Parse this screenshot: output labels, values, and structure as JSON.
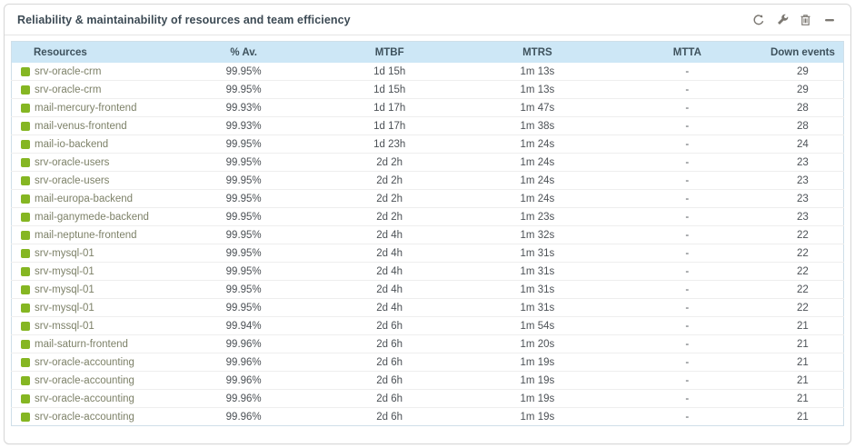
{
  "panel": {
    "title": "Reliability & maintainability of resources and team efficiency",
    "toolbar": {
      "icons": [
        "refresh-icon",
        "wrench-icon",
        "trash-icon",
        "minimize-icon"
      ]
    }
  },
  "colors": {
    "header_bg": "#cde7f6",
    "header_text": "#3e525d",
    "status_ok": "#85b622",
    "resource_text": "#7d8168",
    "cell_text": "#4c5156",
    "icon_gray": "#7c7872"
  },
  "table": {
    "columns": [
      {
        "key": "resource",
        "label": "Resources"
      },
      {
        "key": "availability",
        "label": "% Av."
      },
      {
        "key": "mtbf",
        "label": "MTBF"
      },
      {
        "key": "mtrs",
        "label": "MTRS"
      },
      {
        "key": "mtta",
        "label": "MTTA"
      },
      {
        "key": "down_events",
        "label": "Down events"
      }
    ],
    "rows": [
      {
        "status": "ok",
        "resource": "srv-oracle-crm",
        "availability": "99.95%",
        "mtbf": "1d 15h",
        "mtrs": "1m 13s",
        "mtta": "-",
        "down_events": 29
      },
      {
        "status": "ok",
        "resource": "srv-oracle-crm",
        "availability": "99.95%",
        "mtbf": "1d 15h",
        "mtrs": "1m 13s",
        "mtta": "-",
        "down_events": 29
      },
      {
        "status": "ok",
        "resource": "mail-mercury-frontend",
        "availability": "99.93%",
        "mtbf": "1d 17h",
        "mtrs": "1m 47s",
        "mtta": "-",
        "down_events": 28
      },
      {
        "status": "ok",
        "resource": "mail-venus-frontend",
        "availability": "99.93%",
        "mtbf": "1d 17h",
        "mtrs": "1m 38s",
        "mtta": "-",
        "down_events": 28
      },
      {
        "status": "ok",
        "resource": "mail-io-backend",
        "availability": "99.95%",
        "mtbf": "1d 23h",
        "mtrs": "1m 24s",
        "mtta": "-",
        "down_events": 24
      },
      {
        "status": "ok",
        "resource": "srv-oracle-users",
        "availability": "99.95%",
        "mtbf": "2d 2h",
        "mtrs": "1m 24s",
        "mtta": "-",
        "down_events": 23
      },
      {
        "status": "ok",
        "resource": "srv-oracle-users",
        "availability": "99.95%",
        "mtbf": "2d 2h",
        "mtrs": "1m 24s",
        "mtta": "-",
        "down_events": 23
      },
      {
        "status": "ok",
        "resource": "mail-europa-backend",
        "availability": "99.95%",
        "mtbf": "2d 2h",
        "mtrs": "1m 24s",
        "mtta": "-",
        "down_events": 23
      },
      {
        "status": "ok",
        "resource": "mail-ganymede-backend",
        "availability": "99.95%",
        "mtbf": "2d 2h",
        "mtrs": "1m 23s",
        "mtta": "-",
        "down_events": 23
      },
      {
        "status": "ok",
        "resource": "mail-neptune-frontend",
        "availability": "99.95%",
        "mtbf": "2d 4h",
        "mtrs": "1m 32s",
        "mtta": "-",
        "down_events": 22
      },
      {
        "status": "ok",
        "resource": "srv-mysql-01",
        "availability": "99.95%",
        "mtbf": "2d 4h",
        "mtrs": "1m 31s",
        "mtta": "-",
        "down_events": 22
      },
      {
        "status": "ok",
        "resource": "srv-mysql-01",
        "availability": "99.95%",
        "mtbf": "2d 4h",
        "mtrs": "1m 31s",
        "mtta": "-",
        "down_events": 22
      },
      {
        "status": "ok",
        "resource": "srv-mysql-01",
        "availability": "99.95%",
        "mtbf": "2d 4h",
        "mtrs": "1m 31s",
        "mtta": "-",
        "down_events": 22
      },
      {
        "status": "ok",
        "resource": "srv-mysql-01",
        "availability": "99.95%",
        "mtbf": "2d 4h",
        "mtrs": "1m 31s",
        "mtta": "-",
        "down_events": 22
      },
      {
        "status": "ok",
        "resource": "srv-mssql-01",
        "availability": "99.94%",
        "mtbf": "2d 6h",
        "mtrs": "1m 54s",
        "mtta": "-",
        "down_events": 21
      },
      {
        "status": "ok",
        "resource": "mail-saturn-frontend",
        "availability": "99.96%",
        "mtbf": "2d 6h",
        "mtrs": "1m 20s",
        "mtta": "-",
        "down_events": 21
      },
      {
        "status": "ok",
        "resource": "srv-oracle-accounting",
        "availability": "99.96%",
        "mtbf": "2d 6h",
        "mtrs": "1m 19s",
        "mtta": "-",
        "down_events": 21
      },
      {
        "status": "ok",
        "resource": "srv-oracle-accounting",
        "availability": "99.96%",
        "mtbf": "2d 6h",
        "mtrs": "1m 19s",
        "mtta": "-",
        "down_events": 21
      },
      {
        "status": "ok",
        "resource": "srv-oracle-accounting",
        "availability": "99.96%",
        "mtbf": "2d 6h",
        "mtrs": "1m 19s",
        "mtta": "-",
        "down_events": 21
      },
      {
        "status": "ok",
        "resource": "srv-oracle-accounting",
        "availability": "99.96%",
        "mtbf": "2d 6h",
        "mtrs": "1m 19s",
        "mtta": "-",
        "down_events": 21
      }
    ]
  }
}
